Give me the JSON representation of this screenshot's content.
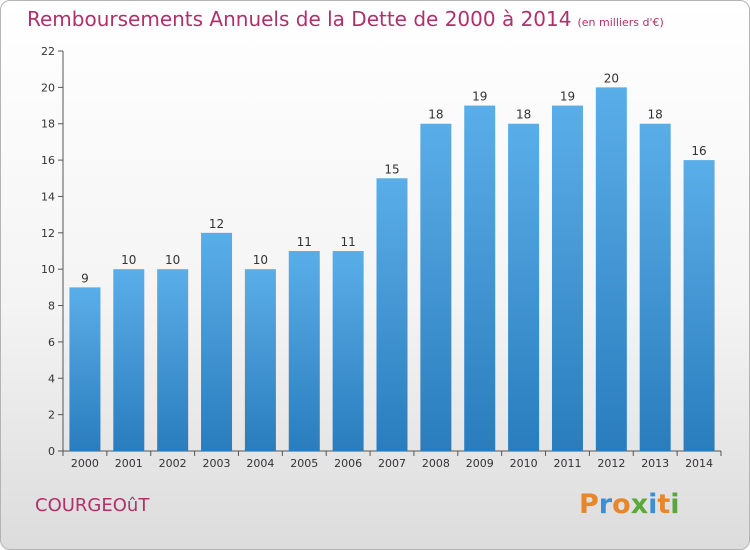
{
  "header": {
    "title": "Remboursements Annuels de la Dette de 2000 à 2014",
    "unit": "(en milliers d'€)"
  },
  "footer": {
    "town": "COURGEOûT",
    "logo_letters": [
      {
        "ch": "P",
        "color": "#e8862a"
      },
      {
        "ch": "r",
        "color": "#3a8fd6"
      },
      {
        "ch": "o",
        "color": "#e8862a"
      },
      {
        "ch": "x",
        "color": "#5aa83a"
      },
      {
        "ch": "i",
        "color": "#3a8fd6"
      },
      {
        "ch": "t",
        "color": "#e8862a"
      },
      {
        "ch": "i",
        "color": "#5aa83a"
      }
    ]
  },
  "chart_data": {
    "type": "bar",
    "categories": [
      "2000",
      "2001",
      "2002",
      "2003",
      "2004",
      "2005",
      "2006",
      "2007",
      "2008",
      "2009",
      "2010",
      "2011",
      "2012",
      "2013",
      "2014"
    ],
    "values": [
      9,
      10,
      10,
      12,
      10,
      11,
      11,
      15,
      18,
      19,
      18,
      19,
      20,
      18,
      16
    ],
    "title": "Remboursements Annuels de la Dette de 2000 à 2014",
    "ylim": [
      0,
      22
    ],
    "yticks": [
      0,
      2,
      4,
      6,
      8,
      10,
      12,
      14,
      16,
      18,
      20,
      22
    ],
    "grid": false,
    "bar_color_top": "#5aaee8",
    "bar_color_bottom": "#2a7dbd",
    "data_labels": true
  }
}
